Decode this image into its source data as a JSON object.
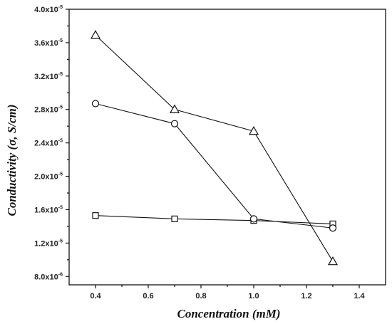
{
  "chart_data": {
    "type": "line",
    "title": "",
    "xlabel": "Concentration (mM)",
    "ylabel": "Conductivity (σ, S/cm)",
    "xlim": [
      0.3,
      1.5
    ],
    "ylim": [
      7e-06,
      4e-05
    ],
    "x_ticks": [
      0.4,
      0.6,
      0.8,
      1.0,
      1.2,
      1.4
    ],
    "x_tick_labels": [
      "0.4",
      "0.6",
      "0.8",
      "1.0",
      "1.2",
      "1.4"
    ],
    "y_ticks": [
      {
        "value": 8e-06,
        "mantissa": "8.0x10",
        "exp": "-6"
      },
      {
        "value": 1.2e-05,
        "mantissa": "1.2x10",
        "exp": "-5"
      },
      {
        "value": 1.6e-05,
        "mantissa": "1.6x10",
        "exp": "-5"
      },
      {
        "value": 2e-05,
        "mantissa": "2.0x10",
        "exp": "-5"
      },
      {
        "value": 2.4e-05,
        "mantissa": "2.4x10",
        "exp": "-5"
      },
      {
        "value": 2.8e-05,
        "mantissa": "2.8x10",
        "exp": "-5"
      },
      {
        "value": 3.2e-05,
        "mantissa": "3.2x10",
        "exp": "-5"
      },
      {
        "value": 3.6e-05,
        "mantissa": "3.6x10",
        "exp": "-5"
      },
      {
        "value": 4e-05,
        "mantissa": "4.0x10",
        "exp": "-5"
      }
    ],
    "grid": false,
    "legend": "none",
    "series": [
      {
        "marker": "square",
        "x": [
          0.4,
          0.7,
          1.0,
          1.3
        ],
        "y": [
          1.53e-05,
          1.49e-05,
          1.47e-05,
          1.43e-05
        ]
      },
      {
        "marker": "circle",
        "x": [
          0.4,
          0.7,
          1.0,
          1.3
        ],
        "y": [
          2.87e-05,
          2.63e-05,
          1.49e-05,
          1.38e-05
        ]
      },
      {
        "marker": "triangle",
        "x": [
          0.4,
          0.7,
          1.0,
          1.3
        ],
        "y": [
          3.69e-05,
          2.8e-05,
          2.54e-05,
          9.8e-06
        ]
      }
    ]
  }
}
